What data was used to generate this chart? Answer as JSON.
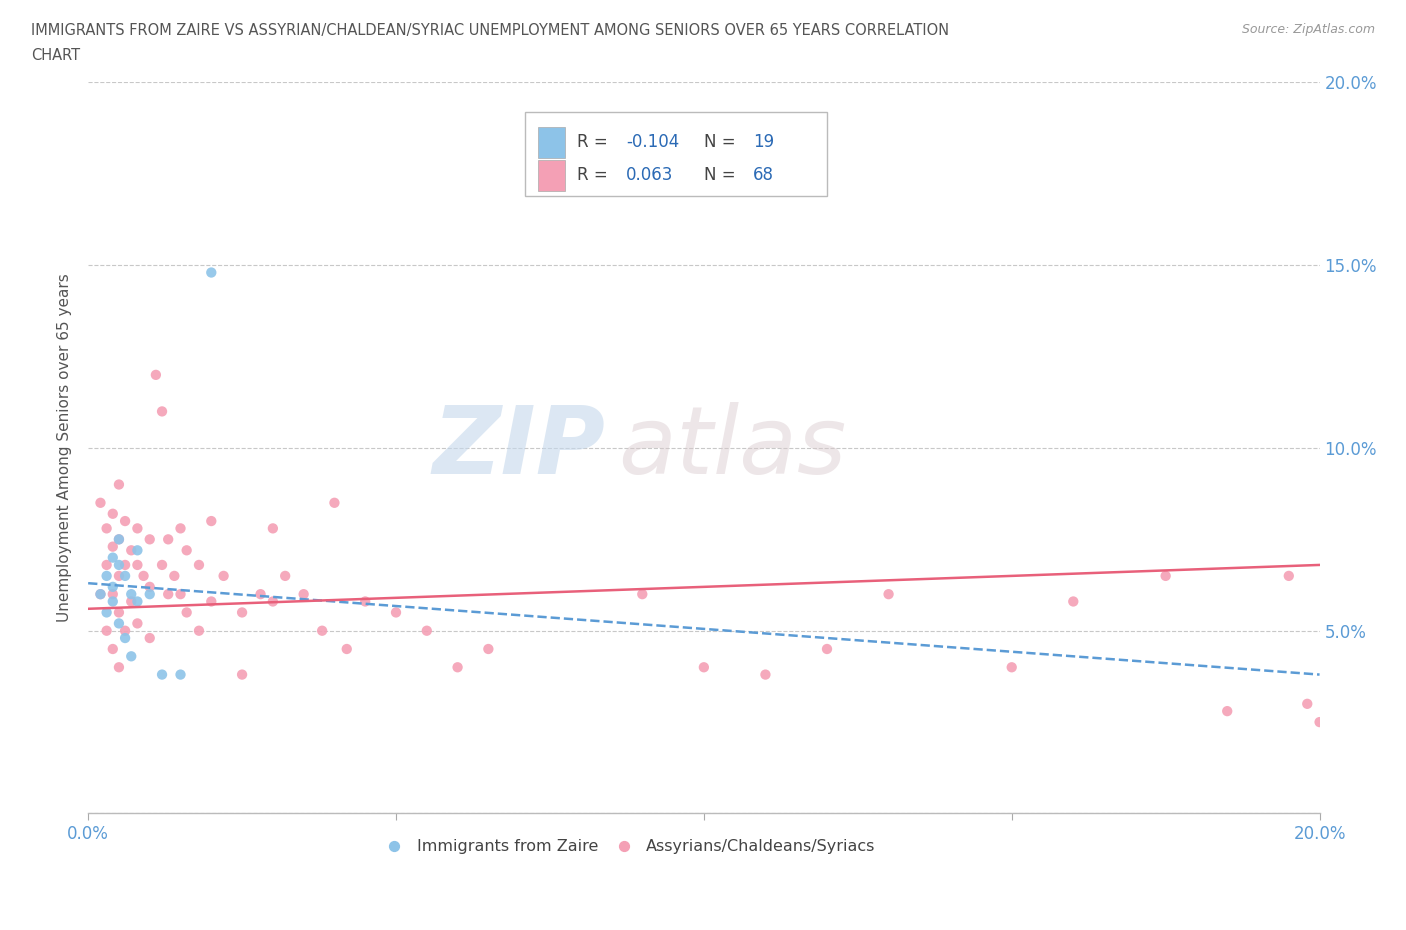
{
  "title_line1": "IMMIGRANTS FROM ZAIRE VS ASSYRIAN/CHALDEAN/SYRIAC UNEMPLOYMENT AMONG SENIORS OVER 65 YEARS CORRELATION",
  "title_line2": "CHART",
  "source": "Source: ZipAtlas.com",
  "ylabel": "Unemployment Among Seniors over 65 years",
  "xlim": [
    0.0,
    0.2
  ],
  "ylim": [
    0.0,
    0.2
  ],
  "series1_name": "Immigrants from Zaire",
  "series1_color": "#8dc3e8",
  "series1_R": -0.104,
  "series1_N": 19,
  "series2_name": "Assyrians/Chaldeans/Syriacs",
  "series2_color": "#f4a0b5",
  "series2_R": 0.063,
  "series2_N": 68,
  "series1_x": [
    0.002,
    0.003,
    0.003,
    0.004,
    0.004,
    0.004,
    0.005,
    0.005,
    0.005,
    0.006,
    0.006,
    0.007,
    0.007,
    0.008,
    0.008,
    0.01,
    0.012,
    0.015,
    0.02
  ],
  "series1_y": [
    0.06,
    0.065,
    0.055,
    0.07,
    0.058,
    0.062,
    0.075,
    0.068,
    0.052,
    0.065,
    0.048,
    0.06,
    0.043,
    0.058,
    0.072,
    0.06,
    0.038,
    0.038,
    0.148
  ],
  "series2_x": [
    0.002,
    0.002,
    0.003,
    0.003,
    0.003,
    0.004,
    0.004,
    0.004,
    0.004,
    0.005,
    0.005,
    0.005,
    0.005,
    0.005,
    0.006,
    0.006,
    0.006,
    0.007,
    0.007,
    0.008,
    0.008,
    0.008,
    0.009,
    0.01,
    0.01,
    0.01,
    0.011,
    0.012,
    0.012,
    0.013,
    0.013,
    0.014,
    0.015,
    0.015,
    0.016,
    0.016,
    0.018,
    0.018,
    0.02,
    0.02,
    0.022,
    0.025,
    0.025,
    0.028,
    0.03,
    0.03,
    0.032,
    0.035,
    0.038,
    0.04,
    0.042,
    0.045,
    0.05,
    0.055,
    0.06,
    0.065,
    0.09,
    0.1,
    0.11,
    0.12,
    0.13,
    0.15,
    0.16,
    0.175,
    0.185,
    0.195,
    0.198,
    0.2
  ],
  "series2_y": [
    0.085,
    0.06,
    0.078,
    0.068,
    0.05,
    0.082,
    0.073,
    0.06,
    0.045,
    0.09,
    0.075,
    0.065,
    0.055,
    0.04,
    0.08,
    0.068,
    0.05,
    0.072,
    0.058,
    0.078,
    0.068,
    0.052,
    0.065,
    0.075,
    0.062,
    0.048,
    0.12,
    0.11,
    0.068,
    0.075,
    0.06,
    0.065,
    0.078,
    0.06,
    0.072,
    0.055,
    0.068,
    0.05,
    0.08,
    0.058,
    0.065,
    0.038,
    0.055,
    0.06,
    0.078,
    0.058,
    0.065,
    0.06,
    0.05,
    0.085,
    0.045,
    0.058,
    0.055,
    0.05,
    0.04,
    0.045,
    0.06,
    0.04,
    0.038,
    0.045,
    0.06,
    0.04,
    0.058,
    0.065,
    0.028,
    0.065,
    0.03,
    0.025
  ],
  "trend1_start_y": 0.063,
  "trend1_end_y": 0.038,
  "trend2_start_y": 0.056,
  "trend2_end_y": 0.068,
  "trend1_color": "#5b9bd5",
  "trend2_color": "#e8607a",
  "watermark_zip": "ZIP",
  "watermark_atlas": "atlas",
  "background_color": "#ffffff",
  "grid_color": "#c8c8c8",
  "legend_R_color": "#2b6ab5",
  "legend_N_color": "#2b6ab5",
  "title_color": "#555555",
  "axis_color": "#5b9bd5"
}
